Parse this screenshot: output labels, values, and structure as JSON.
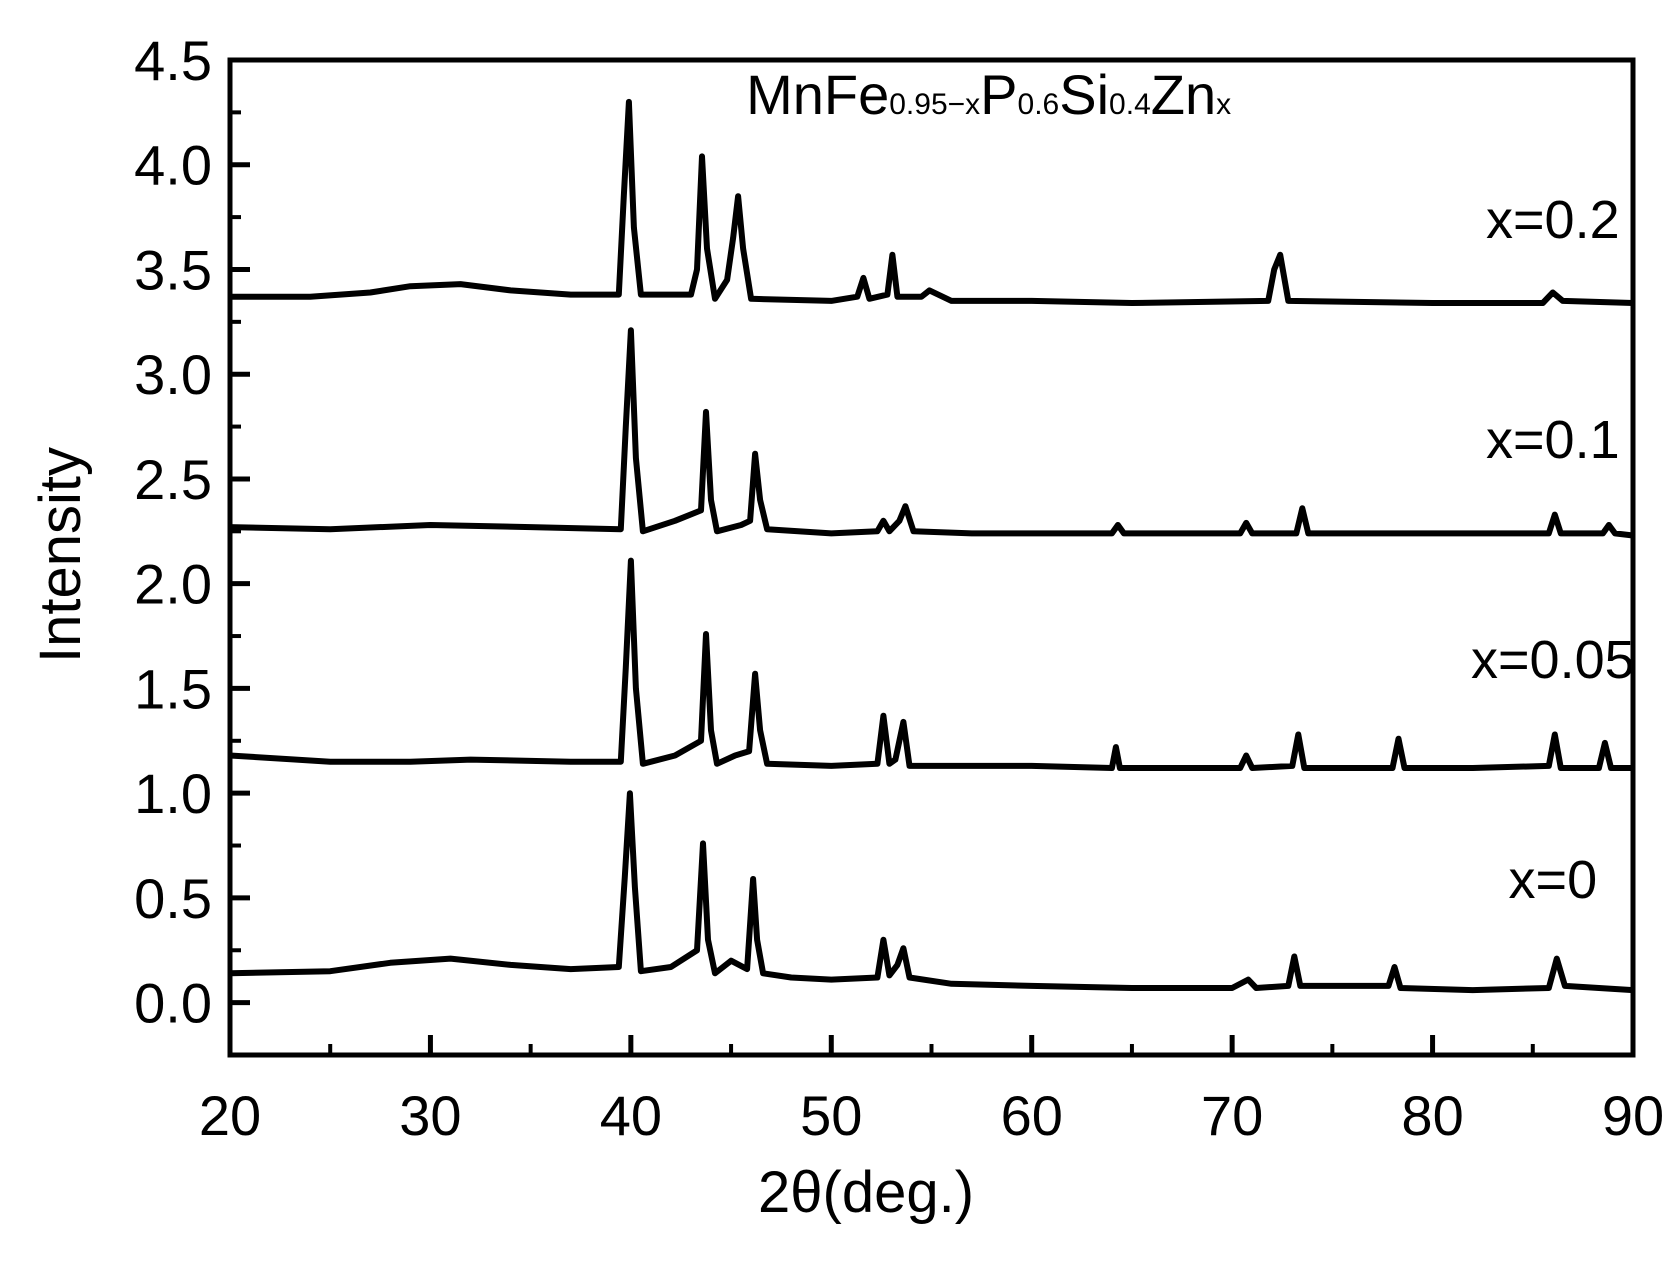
{
  "chart_data": {
    "type": "line",
    "title_parts": [
      {
        "text": "MnFe",
        "sub": false
      },
      {
        "text": "0.95−x",
        "sub": true
      },
      {
        "text": "P",
        "sub": false
      },
      {
        "text": "0.6",
        "sub": true
      },
      {
        "text": "Si",
        "sub": false
      },
      {
        "text": "0.4",
        "sub": true
      },
      {
        "text": "Zn",
        "sub": false
      },
      {
        "text": "x",
        "sub": true
      }
    ],
    "xlabel": "2θ(deg.)",
    "ylabel": "Intensity",
    "xlim": [
      20,
      90
    ],
    "ylim": [
      -0.25,
      4.5
    ],
    "x_ticks": [
      20,
      30,
      40,
      50,
      60,
      70,
      80,
      90
    ],
    "y_ticks": [
      0.0,
      0.5,
      1.0,
      1.5,
      2.0,
      2.5,
      3.0,
      3.5,
      4.0,
      4.5
    ],
    "x_tick_labels": [
      "20",
      "30",
      "40",
      "50",
      "60",
      "70",
      "80",
      "90"
    ],
    "y_tick_labels": [
      "0.0",
      "0.5",
      "1.0",
      "1.5",
      "2.0",
      "2.5",
      "3.0",
      "3.5",
      "4.0",
      "4.5"
    ],
    "grid": false,
    "line_color": "#000000",
    "series": [
      {
        "name": "x=0",
        "label_at": [
          86,
          0.5
        ],
        "x": [
          20,
          25,
          28,
          31,
          34,
          37,
          39.4,
          39.7,
          39.95,
          40.2,
          40.5,
          42,
          43.3,
          43.6,
          43.85,
          44.2,
          45,
          45.8,
          46.1,
          46.3,
          46.6,
          48,
          50,
          52.3,
          52.6,
          52.9,
          53.3,
          53.6,
          53.9,
          56,
          60,
          65,
          70,
          70.8,
          71.2,
          72.8,
          73.1,
          73.4,
          77.8,
          78.1,
          78.4,
          82,
          85.8,
          86.2,
          86.6,
          90
        ],
        "y": [
          0.14,
          0.15,
          0.19,
          0.21,
          0.18,
          0.16,
          0.17,
          0.6,
          1.0,
          0.55,
          0.15,
          0.17,
          0.25,
          0.76,
          0.3,
          0.14,
          0.2,
          0.16,
          0.59,
          0.3,
          0.14,
          0.12,
          0.11,
          0.12,
          0.3,
          0.13,
          0.18,
          0.26,
          0.12,
          0.09,
          0.08,
          0.07,
          0.07,
          0.11,
          0.07,
          0.08,
          0.22,
          0.08,
          0.08,
          0.17,
          0.07,
          0.06,
          0.07,
          0.21,
          0.08,
          0.06
        ]
      },
      {
        "name": "x=0.05",
        "label_at": [
          86,
          1.55
        ],
        "x": [
          20,
          25,
          29,
          32,
          37,
          39.5,
          39.75,
          40,
          40.25,
          40.6,
          42.2,
          43.5,
          43.75,
          44,
          44.3,
          45.2,
          45.9,
          46.2,
          46.45,
          46.8,
          50,
          52.3,
          52.6,
          52.9,
          53.2,
          53.6,
          53.9,
          60,
          64,
          64.2,
          64.4,
          70.4,
          70.7,
          71,
          73,
          73.3,
          73.6,
          78,
          78.3,
          78.6,
          82,
          85.8,
          86.1,
          86.4,
          88.3,
          88.6,
          88.9,
          90
        ],
        "y": [
          1.18,
          1.15,
          1.15,
          1.16,
          1.15,
          1.15,
          1.6,
          2.11,
          1.5,
          1.14,
          1.18,
          1.25,
          1.76,
          1.3,
          1.14,
          1.18,
          1.2,
          1.57,
          1.3,
          1.14,
          1.13,
          1.14,
          1.37,
          1.14,
          1.16,
          1.34,
          1.13,
          1.13,
          1.12,
          1.22,
          1.12,
          1.12,
          1.18,
          1.12,
          1.13,
          1.28,
          1.12,
          1.12,
          1.26,
          1.12,
          1.12,
          1.13,
          1.28,
          1.12,
          1.12,
          1.24,
          1.12,
          1.12
        ]
      },
      {
        "name": "x=0.1",
        "label_at": [
          86,
          2.6
        ],
        "x": [
          20,
          25,
          30,
          35,
          39.5,
          39.75,
          40,
          40.25,
          40.6,
          42.2,
          43.5,
          43.75,
          44,
          44.3,
          45.5,
          45.95,
          46.2,
          46.45,
          46.8,
          50,
          52.3,
          52.6,
          52.9,
          53.4,
          53.7,
          54.1,
          57,
          64,
          64.3,
          64.6,
          70.4,
          70.7,
          71,
          73.2,
          73.5,
          73.8,
          80,
          85.8,
          86.1,
          86.4,
          88.5,
          88.8,
          89.1,
          90
        ],
        "y": [
          2.27,
          2.26,
          2.28,
          2.27,
          2.26,
          2.75,
          3.21,
          2.6,
          2.25,
          2.3,
          2.35,
          2.82,
          2.4,
          2.25,
          2.28,
          2.3,
          2.62,
          2.4,
          2.26,
          2.24,
          2.25,
          2.3,
          2.25,
          2.3,
          2.37,
          2.25,
          2.24,
          2.24,
          2.28,
          2.24,
          2.24,
          2.29,
          2.24,
          2.24,
          2.36,
          2.24,
          2.24,
          2.24,
          2.33,
          2.24,
          2.24,
          2.28,
          2.24,
          2.23
        ]
      },
      {
        "name": "x=0.2",
        "label_at": [
          86,
          3.65
        ],
        "x": [
          20,
          24,
          27,
          29,
          31.5,
          34,
          37,
          39.4,
          39.65,
          39.9,
          40.15,
          40.5,
          43,
          43.3,
          43.55,
          43.8,
          44.2,
          44.8,
          45.1,
          45.35,
          45.6,
          46,
          50,
          51.3,
          51.6,
          51.9,
          52.8,
          53.05,
          53.3,
          54.5,
          54.9,
          56,
          60,
          65,
          71.8,
          72.1,
          72.4,
          72.8,
          80,
          85.5,
          86,
          86.5,
          90
        ],
        "y": [
          3.37,
          3.37,
          3.39,
          3.42,
          3.43,
          3.4,
          3.38,
          3.38,
          3.85,
          4.3,
          3.7,
          3.38,
          3.38,
          3.5,
          4.04,
          3.6,
          3.36,
          3.45,
          3.65,
          3.85,
          3.6,
          3.36,
          3.35,
          3.37,
          3.46,
          3.36,
          3.38,
          3.57,
          3.37,
          3.37,
          3.4,
          3.35,
          3.35,
          3.34,
          3.35,
          3.5,
          3.57,
          3.35,
          3.34,
          3.34,
          3.39,
          3.35,
          3.34
        ]
      }
    ]
  }
}
